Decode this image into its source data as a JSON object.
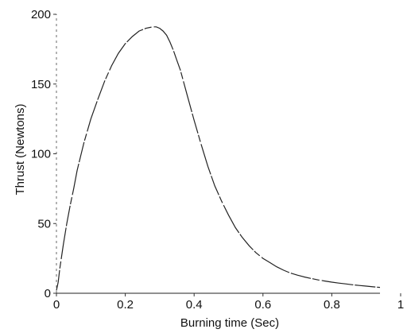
{
  "chart_data": {
    "type": "line",
    "title": "",
    "xlabel": "Burning time (Sec)",
    "ylabel": "Thrust (Newtons)",
    "xlim": [
      0,
      1
    ],
    "ylim": [
      0,
      200
    ],
    "xticks": [
      0,
      0.2,
      0.4,
      0.6,
      0.8,
      1
    ],
    "xtick_labels": [
      "0",
      "0.2",
      "0.4",
      "0.6",
      "0.8",
      "1"
    ],
    "yticks": [
      0,
      50,
      100,
      150,
      200
    ],
    "ytick_labels": [
      "0",
      "50",
      "100",
      "150",
      "200"
    ],
    "grid": false,
    "legend": "none",
    "series": [
      {
        "x": [
          0.0,
          0.005,
          0.01,
          0.02,
          0.03,
          0.04,
          0.05,
          0.06,
          0.07,
          0.08,
          0.1,
          0.12,
          0.14,
          0.16,
          0.18,
          0.2,
          0.22,
          0.24,
          0.26,
          0.28,
          0.29,
          0.3,
          0.31,
          0.32,
          0.33,
          0.34,
          0.35,
          0.36,
          0.37,
          0.38,
          0.4,
          0.42,
          0.44,
          0.46,
          0.48,
          0.5,
          0.52,
          0.54,
          0.56,
          0.58,
          0.6,
          0.62,
          0.64,
          0.66,
          0.68,
          0.7,
          0.72,
          0.74,
          0.76,
          0.78,
          0.8,
          0.82,
          0.84,
          0.86,
          0.88,
          0.9,
          0.92,
          0.94
        ],
        "y": [
          2,
          8,
          18,
          35,
          50,
          63,
          75,
          88,
          98,
          108,
          125,
          139,
          152,
          163,
          172,
          179,
          184,
          188,
          190,
          191,
          191,
          190,
          188,
          185,
          180,
          174,
          167,
          160,
          151,
          142,
          124,
          107,
          91,
          77,
          66,
          56,
          47,
          40,
          34,
          29,
          25,
          22,
          19,
          16.5,
          14.5,
          13,
          11.7,
          10.6,
          9.6,
          8.8,
          8,
          7.3,
          6.7,
          6.1,
          5.6,
          5.1,
          4.6,
          4.2
        ]
      }
    ]
  }
}
